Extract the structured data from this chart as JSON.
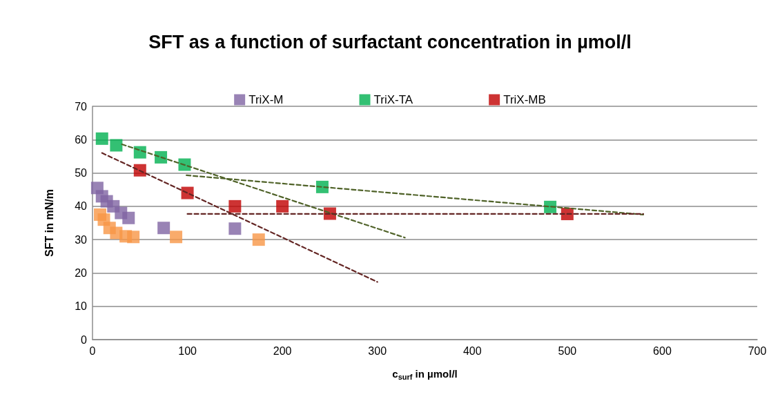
{
  "chart_data": {
    "type": "scatter",
    "title": "SFT as a function of surfactant concentration in µmol/l",
    "xlabel": "c$_{surf}$ in µmol/l",
    "ylabel": "SFT in mN/m",
    "xlim": [
      0,
      700
    ],
    "xticks": [
      0,
      100,
      200,
      300,
      400,
      500,
      600,
      700
    ],
    "ylim": [
      0,
      70
    ],
    "yticks": [
      0,
      10,
      20,
      30,
      40,
      50,
      60,
      70
    ],
    "grid": "y",
    "legend": "top",
    "marker": "square",
    "series": [
      {
        "name": "TriX-M",
        "color": "#8064a2",
        "x": [
          5,
          10,
          15,
          22,
          30,
          38,
          75,
          150
        ],
        "values": [
          45.5,
          43,
          41.5,
          40,
          38,
          36.5,
          33.5,
          33.3
        ]
      },
      {
        "color": "#f79646",
        "x": [
          8,
          12,
          18,
          25,
          35,
          43,
          88,
          175
        ],
        "values": [
          37.5,
          36,
          33.5,
          32,
          31,
          30.8,
          30.8,
          30
        ]
      },
      {
        "name": "TriX-TA",
        "color": "#00b050",
        "x": [
          10,
          25,
          50,
          72,
          97,
          242,
          482
        ],
        "values": [
          60.3,
          58.3,
          56.2,
          54.7,
          52.5,
          45.8,
          39.8
        ]
      },
      {
        "name": "TriX-MB",
        "color": "#c00000",
        "x": [
          50,
          100,
          150,
          200,
          250,
          500
        ],
        "values": [
          50.8,
          44,
          40,
          40,
          37.8,
          37.7
        ]
      },
      {
        "type": "line",
        "color": "#4f6228",
        "marker": "none",
        "line_style": "dashed",
        "x": [
          31,
          329
        ],
        "values": [
          58.6,
          30.6
        ]
      },
      {
        "type": "line",
        "color": "#4f6228",
        "marker": "none",
        "line_style": "dashed",
        "x": [
          99,
          580
        ],
        "values": [
          49.3,
          37.5
        ]
      },
      {
        "type": "line",
        "color": "#632523",
        "marker": "none",
        "line_style": "dashed",
        "x": [
          10,
          300
        ],
        "values": [
          56,
          17.3
        ]
      },
      {
        "type": "line",
        "color": "#632523",
        "marker": "none",
        "line_style": "dashed",
        "x": [
          100,
          580
        ],
        "values": [
          37.7,
          37.7
        ]
      }
    ]
  }
}
